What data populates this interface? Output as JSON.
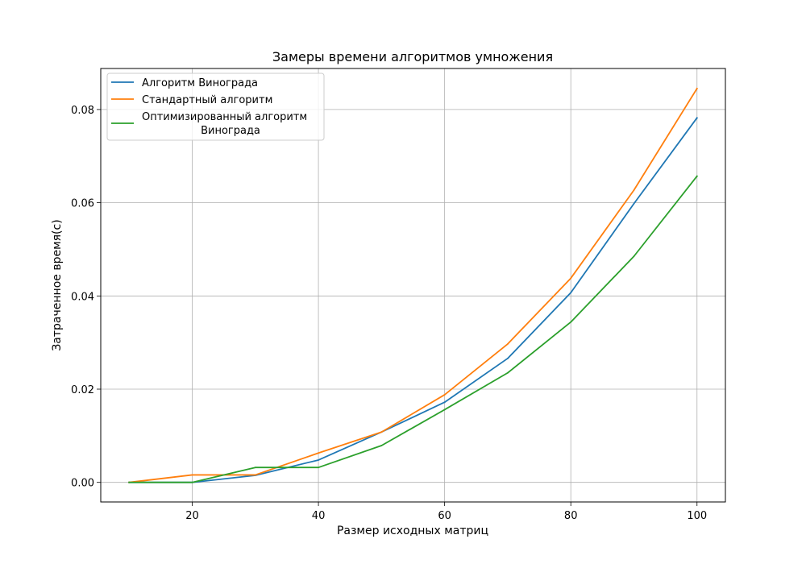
{
  "chart_data": {
    "type": "line",
    "title": "Замеры времени алгоритмов умножения",
    "xlabel": "Размер исходных матриц",
    "ylabel": "Затраченное время(с)",
    "x": [
      10,
      20,
      30,
      40,
      50,
      60,
      70,
      80,
      90,
      100
    ],
    "xlim": [
      5.5,
      104.5
    ],
    "ylim": [
      -0.0042,
      0.0888
    ],
    "xticks": [
      20,
      40,
      60,
      80,
      100
    ],
    "yticks": [
      0.0,
      0.02,
      0.04,
      0.06,
      0.08
    ],
    "xtick_labels": [
      "20",
      "40",
      "60",
      "80",
      "100"
    ],
    "ytick_labels": [
      "0.00",
      "0.02",
      "0.04",
      "0.06",
      "0.08"
    ],
    "grid": true,
    "legend_position": "upper-left",
    "series": [
      {
        "name": "Алгоритм Винограда",
        "color": "#1f77b4",
        "values": [
          0.0,
          0.0,
          0.0015,
          0.0048,
          0.0108,
          0.0172,
          0.0266,
          0.0407,
          0.0598,
          0.0782
        ]
      },
      {
        "name": "Стандартный алгоритм",
        "color": "#ff7f0e",
        "values": [
          0.0,
          0.0016,
          0.0016,
          0.0063,
          0.0108,
          0.0188,
          0.0297,
          0.0438,
          0.0627,
          0.0845
        ]
      },
      {
        "name": "Оптимизированный алгоритм\nВинограда",
        "color": "#2ca02c",
        "values": [
          0.0,
          0.0,
          0.0032,
          0.0032,
          0.0079,
          0.0156,
          0.0235,
          0.0344,
          0.0485,
          0.0657
        ]
      }
    ]
  }
}
